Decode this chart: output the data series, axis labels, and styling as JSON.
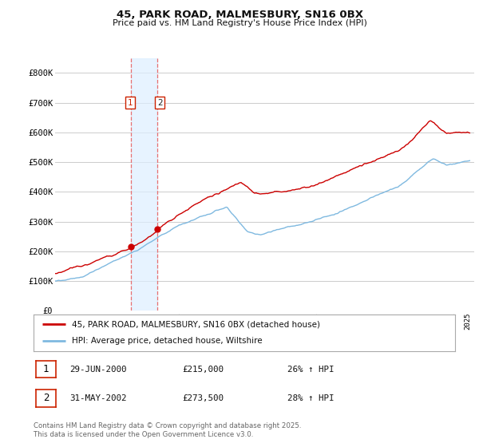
{
  "title": "45, PARK ROAD, MALMESBURY, SN16 0BX",
  "subtitle": "Price paid vs. HM Land Registry's House Price Index (HPI)",
  "red_label": "45, PARK ROAD, MALMESBURY, SN16 0BX (detached house)",
  "blue_label": "HPI: Average price, detached house, Wiltshire",
  "transaction1": {
    "num": "1",
    "date": "29-JUN-2000",
    "price": "£215,000",
    "pct": "26% ↑ HPI"
  },
  "transaction2": {
    "num": "2",
    "date": "31-MAY-2002",
    "price": "£273,500",
    "pct": "28% ↑ HPI"
  },
  "footer": "Contains HM Land Registry data © Crown copyright and database right 2025.\nThis data is licensed under the Open Government Licence v3.0.",
  "ylim": [
    0,
    850000
  ],
  "yticks": [
    0,
    100000,
    200000,
    300000,
    400000,
    500000,
    600000,
    700000,
    800000
  ],
  "ytick_labels": [
    "£0",
    "£100K",
    "£200K",
    "£300K",
    "£400K",
    "£500K",
    "£600K",
    "£700K",
    "£800K"
  ],
  "xlim_start": 1995.0,
  "xlim_end": 2025.5,
  "background_color": "#ffffff",
  "grid_color": "#cccccc",
  "red_color": "#cc0000",
  "blue_color": "#7fb9e0",
  "vline1_x": 2000.5,
  "vline2_x": 2002.42,
  "marker1_x": 2000.5,
  "marker1_y": 215000,
  "marker2_x": 2002.42,
  "marker2_y": 273500
}
